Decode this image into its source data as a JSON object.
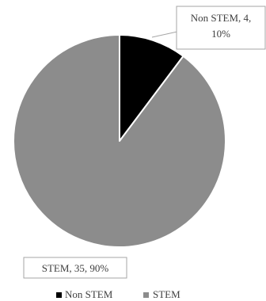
{
  "chart_data": {
    "type": "pie",
    "categories": [
      "Non STEM",
      "STEM"
    ],
    "values": [
      4,
      35
    ],
    "percents": [
      10,
      90
    ],
    "colors": [
      "#000000",
      "#8c8c8c"
    ],
    "data_labels": [
      {
        "line1": "Non STEM, 4,",
        "line2": "10%"
      },
      {
        "line1": "STEM, 35, 90%"
      }
    ],
    "legend": {
      "placement": "bottom",
      "entries": [
        "Non STEM",
        "STEM"
      ]
    }
  }
}
